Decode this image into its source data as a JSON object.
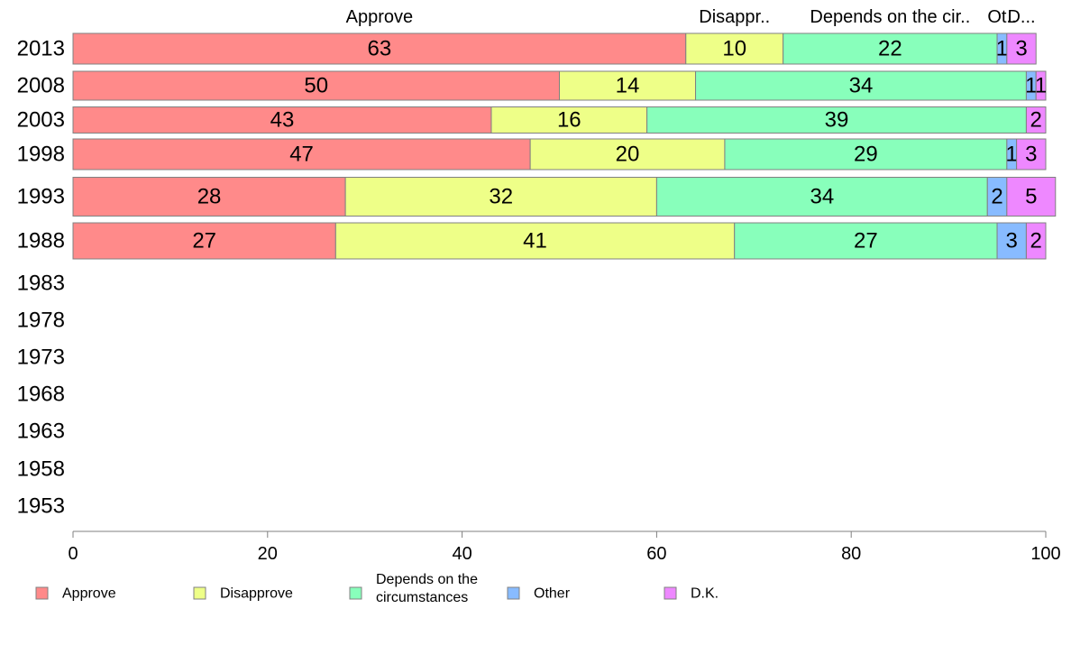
{
  "chart_data": {
    "type": "bar",
    "orientation": "horizontal",
    "stacked": true,
    "title": "",
    "xlabel": "",
    "ylabel": "",
    "xlim": [
      0,
      100
    ],
    "x_ticks": [
      0,
      20,
      40,
      60,
      80,
      100
    ],
    "grid": false,
    "legend_position": "bottom",
    "categories": [
      "2013",
      "2008",
      "2003",
      "1998",
      "1993",
      "1988",
      "1983",
      "1978",
      "1973",
      "1968",
      "1963",
      "1958",
      "1953"
    ],
    "series": [
      {
        "name": "Approve",
        "color": "#ff8a8a",
        "values": [
          63,
          50,
          43,
          47,
          28,
          27,
          null,
          null,
          null,
          null,
          null,
          null,
          null
        ]
      },
      {
        "name": "Disapprove",
        "color": "#eeff88",
        "values": [
          10,
          14,
          16,
          20,
          32,
          41,
          null,
          null,
          null,
          null,
          null,
          null,
          null
        ]
      },
      {
        "name": "Depends on the circumstances",
        "color": "#88ffbb",
        "values": [
          22,
          34,
          39,
          29,
          34,
          27,
          null,
          null,
          null,
          null,
          null,
          null,
          null
        ]
      },
      {
        "name": "Other",
        "color": "#88bbff",
        "values": [
          1,
          1,
          0,
          1,
          2,
          3,
          null,
          null,
          null,
          null,
          null,
          null,
          null
        ]
      },
      {
        "name": "D.K.",
        "color": "#ee88ff",
        "values": [
          3,
          1,
          2,
          3,
          5,
          2,
          null,
          null,
          null,
          null,
          null,
          null,
          null
        ]
      }
    ],
    "top_labels": [
      "Approve",
      "Disappr..",
      "Depends on the cir..",
      "Ot..",
      "D..."
    ],
    "legend_labels": [
      [
        "Approve"
      ],
      [
        "Disapprove"
      ],
      [
        "Depends on the",
        "circumstances"
      ],
      [
        "Other"
      ],
      [
        "D.K."
      ]
    ]
  }
}
